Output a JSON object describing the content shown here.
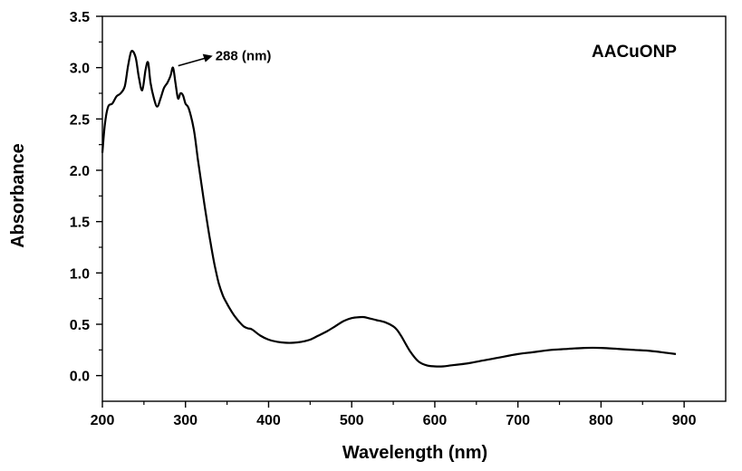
{
  "chart_data": {
    "type": "line",
    "title": "",
    "xlabel": "Wavelength (nm)",
    "ylabel": "Absorbance",
    "xlim": [
      200,
      950
    ],
    "ylim": [
      -0.25,
      3.5
    ],
    "xticks": [
      200,
      300,
      400,
      500,
      600,
      700,
      800,
      900
    ],
    "xtick_labels": [
      "200",
      "300",
      "400",
      "500",
      "600",
      "700",
      "800",
      "900"
    ],
    "yticks": [
      0.0,
      0.5,
      1.0,
      1.5,
      2.0,
      2.5,
      3.0,
      3.5
    ],
    "ytick_labels": [
      "0.0",
      "0.5",
      "1.0",
      "1.5",
      "2.0",
      "2.5",
      "3.0",
      "3.5"
    ],
    "grid": false,
    "legend_placement": "top-right",
    "series": [
      {
        "name": "AACuONP",
        "color": "#000000",
        "x": [
          200,
          203,
          207,
          212,
          217,
          222,
          227,
          231,
          235,
          240,
          244,
          248,
          252,
          255,
          258,
          262,
          266,
          270,
          274,
          278,
          282,
          285,
          288,
          291,
          294,
          297,
          300,
          304,
          310,
          315,
          320,
          325,
          330,
          335,
          340,
          345,
          350,
          355,
          360,
          365,
          370,
          375,
          380,
          390,
          400,
          410,
          420,
          430,
          440,
          450,
          460,
          470,
          480,
          490,
          500,
          510,
          515,
          520,
          530,
          540,
          550,
          555,
          560,
          570,
          580,
          590,
          600,
          610,
          620,
          640,
          660,
          680,
          700,
          720,
          740,
          760,
          780,
          800,
          820,
          840,
          860,
          880,
          890
        ],
        "y": [
          2.17,
          2.45,
          2.62,
          2.65,
          2.72,
          2.75,
          2.82,
          3.02,
          3.16,
          3.1,
          2.9,
          2.78,
          2.98,
          3.05,
          2.85,
          2.7,
          2.62,
          2.7,
          2.8,
          2.85,
          2.92,
          3.0,
          2.85,
          2.7,
          2.75,
          2.73,
          2.65,
          2.6,
          2.4,
          2.1,
          1.82,
          1.55,
          1.3,
          1.08,
          0.9,
          0.78,
          0.7,
          0.63,
          0.57,
          0.52,
          0.48,
          0.46,
          0.45,
          0.39,
          0.35,
          0.33,
          0.32,
          0.32,
          0.33,
          0.35,
          0.39,
          0.43,
          0.48,
          0.53,
          0.56,
          0.57,
          0.57,
          0.56,
          0.54,
          0.52,
          0.48,
          0.44,
          0.38,
          0.24,
          0.14,
          0.1,
          0.09,
          0.09,
          0.1,
          0.12,
          0.15,
          0.18,
          0.21,
          0.23,
          0.25,
          0.26,
          0.27,
          0.27,
          0.26,
          0.25,
          0.24,
          0.22,
          0.21
        ]
      }
    ],
    "legend": [
      "AACuONP"
    ],
    "annotations": [
      {
        "text": "288 (nm)",
        "x": 288,
        "y": 3.0
      }
    ]
  }
}
